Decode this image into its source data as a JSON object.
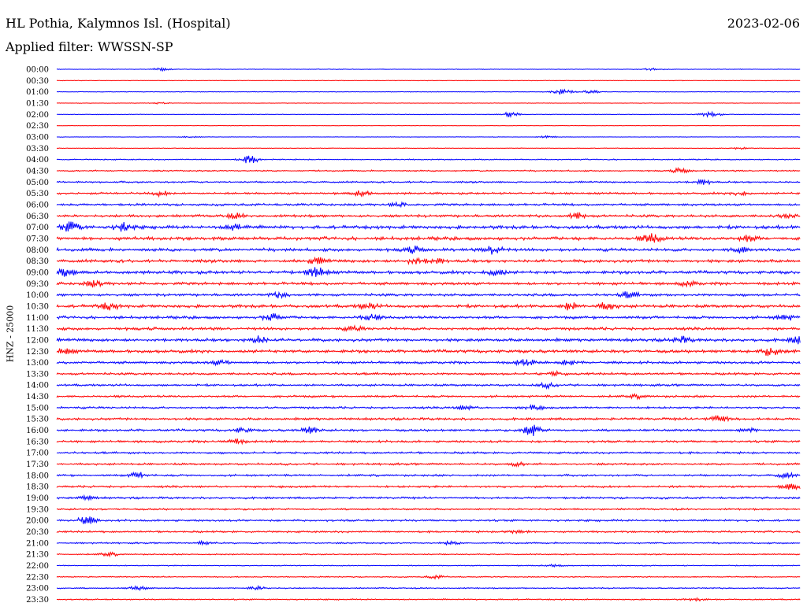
{
  "header": {
    "station_title": "HL Pothia, Kalymnos Isl. (Hospital)",
    "date": "2023-02-06",
    "filter_text": "Applied filter: WWSSN-SP"
  },
  "chart_data": {
    "type": "line",
    "title": "HL Pothia, Kalymnos Isl. (Hospital)",
    "date": "2023-02-06",
    "filter": "WWSSN-SP",
    "ylabel": "HNZ - 25000",
    "trace_colors": [
      "#0000ff",
      "#ff0000"
    ],
    "grid": false,
    "legend": "none",
    "rows": [
      {
        "label": "00:00",
        "amp": 0.25,
        "bursts": [
          [
            0.14,
            1.2
          ],
          [
            0.8,
            1.0
          ]
        ]
      },
      {
        "label": "00:30",
        "amp": 0.2,
        "bursts": []
      },
      {
        "label": "01:00",
        "amp": 0.25,
        "bursts": [
          [
            0.68,
            3.5
          ],
          [
            0.72,
            2.0
          ]
        ]
      },
      {
        "label": "01:30",
        "amp": 0.2,
        "bursts": [
          [
            0.14,
            0.8
          ]
        ]
      },
      {
        "label": "02:00",
        "amp": 0.25,
        "bursts": [
          [
            0.61,
            2.4
          ],
          [
            0.88,
            2.6
          ]
        ]
      },
      {
        "label": "02:30",
        "amp": 0.15,
        "bursts": []
      },
      {
        "label": "03:00",
        "amp": 0.2,
        "bursts": [
          [
            0.18,
            0.8
          ],
          [
            0.66,
            1.0
          ]
        ]
      },
      {
        "label": "03:30",
        "amp": 0.25,
        "bursts": [
          [
            0.92,
            1.0
          ]
        ]
      },
      {
        "label": "04:00",
        "amp": 0.45,
        "bursts": [
          [
            0.26,
            3.6
          ]
        ]
      },
      {
        "label": "04:30",
        "amp": 0.55,
        "bursts": [
          [
            0.84,
            2.2
          ]
        ]
      },
      {
        "label": "05:00",
        "amp": 0.7,
        "bursts": [
          [
            0.87,
            2.6
          ]
        ]
      },
      {
        "label": "05:30",
        "amp": 0.8,
        "bursts": [
          [
            0.14,
            2.0
          ],
          [
            0.41,
            2.4
          ],
          [
            0.92,
            1.8
          ]
        ]
      },
      {
        "label": "06:00",
        "amp": 0.9,
        "bursts": [
          [
            0.46,
            1.6
          ]
        ]
      },
      {
        "label": "06:30",
        "amp": 1.0,
        "bursts": [
          [
            0.24,
            2.0
          ],
          [
            0.7,
            2.8
          ],
          [
            0.98,
            1.6
          ]
        ]
      },
      {
        "label": "07:00",
        "amp": 1.3,
        "bursts": [
          [
            0.02,
            4.6
          ],
          [
            0.09,
            4.0
          ],
          [
            0.24,
            3.2
          ]
        ]
      },
      {
        "label": "07:30",
        "amp": 1.3,
        "bursts": [
          [
            0.8,
            4.0
          ],
          [
            0.93,
            2.4
          ]
        ]
      },
      {
        "label": "08:00",
        "amp": 1.2,
        "bursts": [
          [
            0.48,
            2.6
          ],
          [
            0.59,
            4.4
          ],
          [
            0.92,
            2.0
          ]
        ]
      },
      {
        "label": "08:30",
        "amp": 1.2,
        "bursts": [
          [
            0.35,
            2.6
          ],
          [
            0.48,
            2.4
          ],
          [
            0.51,
            2.6
          ]
        ]
      },
      {
        "label": "09:00",
        "amp": 1.2,
        "bursts": [
          [
            0.01,
            3.6
          ],
          [
            0.35,
            4.4
          ],
          [
            0.59,
            3.0
          ]
        ]
      },
      {
        "label": "09:30",
        "amp": 1.1,
        "bursts": [
          [
            0.05,
            2.8
          ],
          [
            0.85,
            1.8
          ]
        ]
      },
      {
        "label": "10:00",
        "amp": 1.0,
        "bursts": [
          [
            0.3,
            2.2
          ],
          [
            0.77,
            2.6
          ]
        ]
      },
      {
        "label": "10:30",
        "amp": 1.2,
        "bursts": [
          [
            0.07,
            3.0
          ],
          [
            0.42,
            2.6
          ],
          [
            0.69,
            3.6
          ],
          [
            0.74,
            2.8
          ]
        ]
      },
      {
        "label": "11:00",
        "amp": 1.1,
        "bursts": [
          [
            0.29,
            3.2
          ],
          [
            0.42,
            3.0
          ],
          [
            0.98,
            2.4
          ]
        ]
      },
      {
        "label": "11:30",
        "amp": 1.1,
        "bursts": [
          [
            0.4,
            1.8
          ]
        ]
      },
      {
        "label": "12:00",
        "amp": 1.2,
        "bursts": [
          [
            0.27,
            3.4
          ],
          [
            0.84,
            2.6
          ],
          [
            1.0,
            3.4
          ]
        ]
      },
      {
        "label": "12:30",
        "amp": 1.2,
        "bursts": [
          [
            0.01,
            2.4
          ],
          [
            0.96,
            3.8
          ]
        ]
      },
      {
        "label": "13:00",
        "amp": 1.0,
        "bursts": [
          [
            0.22,
            2.0
          ],
          [
            0.63,
            3.0
          ],
          [
            0.69,
            2.4
          ]
        ]
      },
      {
        "label": "13:30",
        "amp": 0.9,
        "bursts": [
          [
            0.67,
            1.6
          ]
        ]
      },
      {
        "label": "14:00",
        "amp": 0.85,
        "bursts": [
          [
            0.66,
            2.0
          ]
        ]
      },
      {
        "label": "14:30",
        "amp": 0.85,
        "bursts": [
          [
            0.78,
            1.4
          ]
        ]
      },
      {
        "label": "15:00",
        "amp": 0.85,
        "bursts": [
          [
            0.55,
            1.6
          ],
          [
            0.64,
            2.2
          ]
        ]
      },
      {
        "label": "15:30",
        "amp": 0.95,
        "bursts": [
          [
            0.89,
            3.4
          ]
        ]
      },
      {
        "label": "16:00",
        "amp": 0.9,
        "bursts": [
          [
            0.25,
            2.0
          ],
          [
            0.34,
            3.0
          ],
          [
            0.64,
            5.2
          ],
          [
            0.93,
            1.6
          ]
        ]
      },
      {
        "label": "16:30",
        "amp": 0.9,
        "bursts": [
          [
            0.24,
            2.2
          ]
        ]
      },
      {
        "label": "17:00",
        "amp": 0.8,
        "bursts": []
      },
      {
        "label": "17:30",
        "amp": 0.8,
        "bursts": [
          [
            0.62,
            1.4
          ]
        ]
      },
      {
        "label": "18:00",
        "amp": 0.8,
        "bursts": [
          [
            0.11,
            2.6
          ],
          [
            0.98,
            2.2
          ]
        ]
      },
      {
        "label": "18:30",
        "amp": 0.85,
        "bursts": [
          [
            0.99,
            2.8
          ]
        ]
      },
      {
        "label": "19:00",
        "amp": 0.8,
        "bursts": [
          [
            0.04,
            1.8
          ]
        ]
      },
      {
        "label": "19:30",
        "amp": 0.7,
        "bursts": []
      },
      {
        "label": "20:00",
        "amp": 0.8,
        "bursts": [
          [
            0.04,
            4.0
          ]
        ]
      },
      {
        "label": "20:30",
        "amp": 0.75,
        "bursts": [
          [
            0.62,
            2.0
          ]
        ]
      },
      {
        "label": "21:00",
        "amp": 0.6,
        "bursts": [
          [
            0.2,
            1.6
          ],
          [
            0.53,
            1.4
          ]
        ]
      },
      {
        "label": "21:30",
        "amp": 0.5,
        "bursts": [
          [
            0.07,
            1.6
          ]
        ]
      },
      {
        "label": "22:00",
        "amp": 0.4,
        "bursts": [
          [
            0.67,
            1.2
          ]
        ]
      },
      {
        "label": "22:30",
        "amp": 0.45,
        "bursts": [
          [
            0.51,
            1.4
          ]
        ]
      },
      {
        "label": "23:00",
        "amp": 0.5,
        "bursts": [
          [
            0.11,
            2.0
          ],
          [
            0.27,
            1.8
          ]
        ]
      },
      {
        "label": "23:30",
        "amp": 0.5,
        "bursts": [
          [
            0.86,
            1.0
          ]
        ]
      }
    ]
  }
}
